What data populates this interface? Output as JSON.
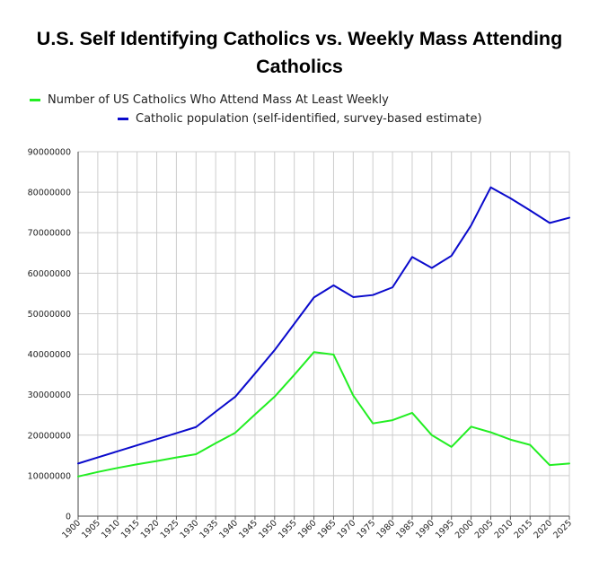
{
  "chart_data": {
    "type": "line",
    "title": "U.S. Self Identifying Catholics vs. Weekly Mass Attending Catholics",
    "xlabel": "",
    "ylabel": "",
    "ylim": [
      0,
      90000000
    ],
    "yticks": [
      "0",
      "10000000",
      "20000000",
      "30000000",
      "40000000",
      "50000000",
      "60000000",
      "70000000",
      "80000000",
      "90000000"
    ],
    "x": [
      "1900",
      "1905",
      "1910",
      "1915",
      "1920",
      "1925",
      "1930",
      "1935",
      "1940",
      "1945",
      "1950",
      "1955",
      "1960",
      "1965",
      "1970",
      "1975",
      "1980",
      "1985",
      "1990",
      "1995",
      "2000",
      "2005",
      "2010",
      "2015",
      "2020",
      "2025"
    ],
    "legend_position": "top-left",
    "series": [
      {
        "name": "Number of US Catholics Who Attend Mass At Least Weekly",
        "color": "#22ee22",
        "values": [
          9800000,
          10900000,
          11900000,
          12800000,
          13600000,
          14500000,
          15300000,
          18000000,
          20600000,
          25100000,
          29500000,
          34900000,
          40500000,
          39900000,
          29800000,
          22900000,
          23700000,
          25500000,
          20000000,
          17100000,
          22100000,
          20700000,
          18900000,
          17600000,
          12600000,
          13000000
        ]
      },
      {
        "name": "Catholic population (self-identified, survey-based estimate)",
        "color": "#0a0acc",
        "values": [
          13000000,
          14500000,
          16000000,
          17500000,
          19000000,
          20500000,
          22000000,
          25800000,
          29500000,
          35200000,
          41000000,
          47500000,
          54000000,
          57000000,
          54100000,
          54600000,
          56500000,
          64000000,
          61300000,
          64300000,
          71800000,
          81200000,
          78500000,
          75500000,
          72400000,
          73700000
        ]
      }
    ]
  }
}
